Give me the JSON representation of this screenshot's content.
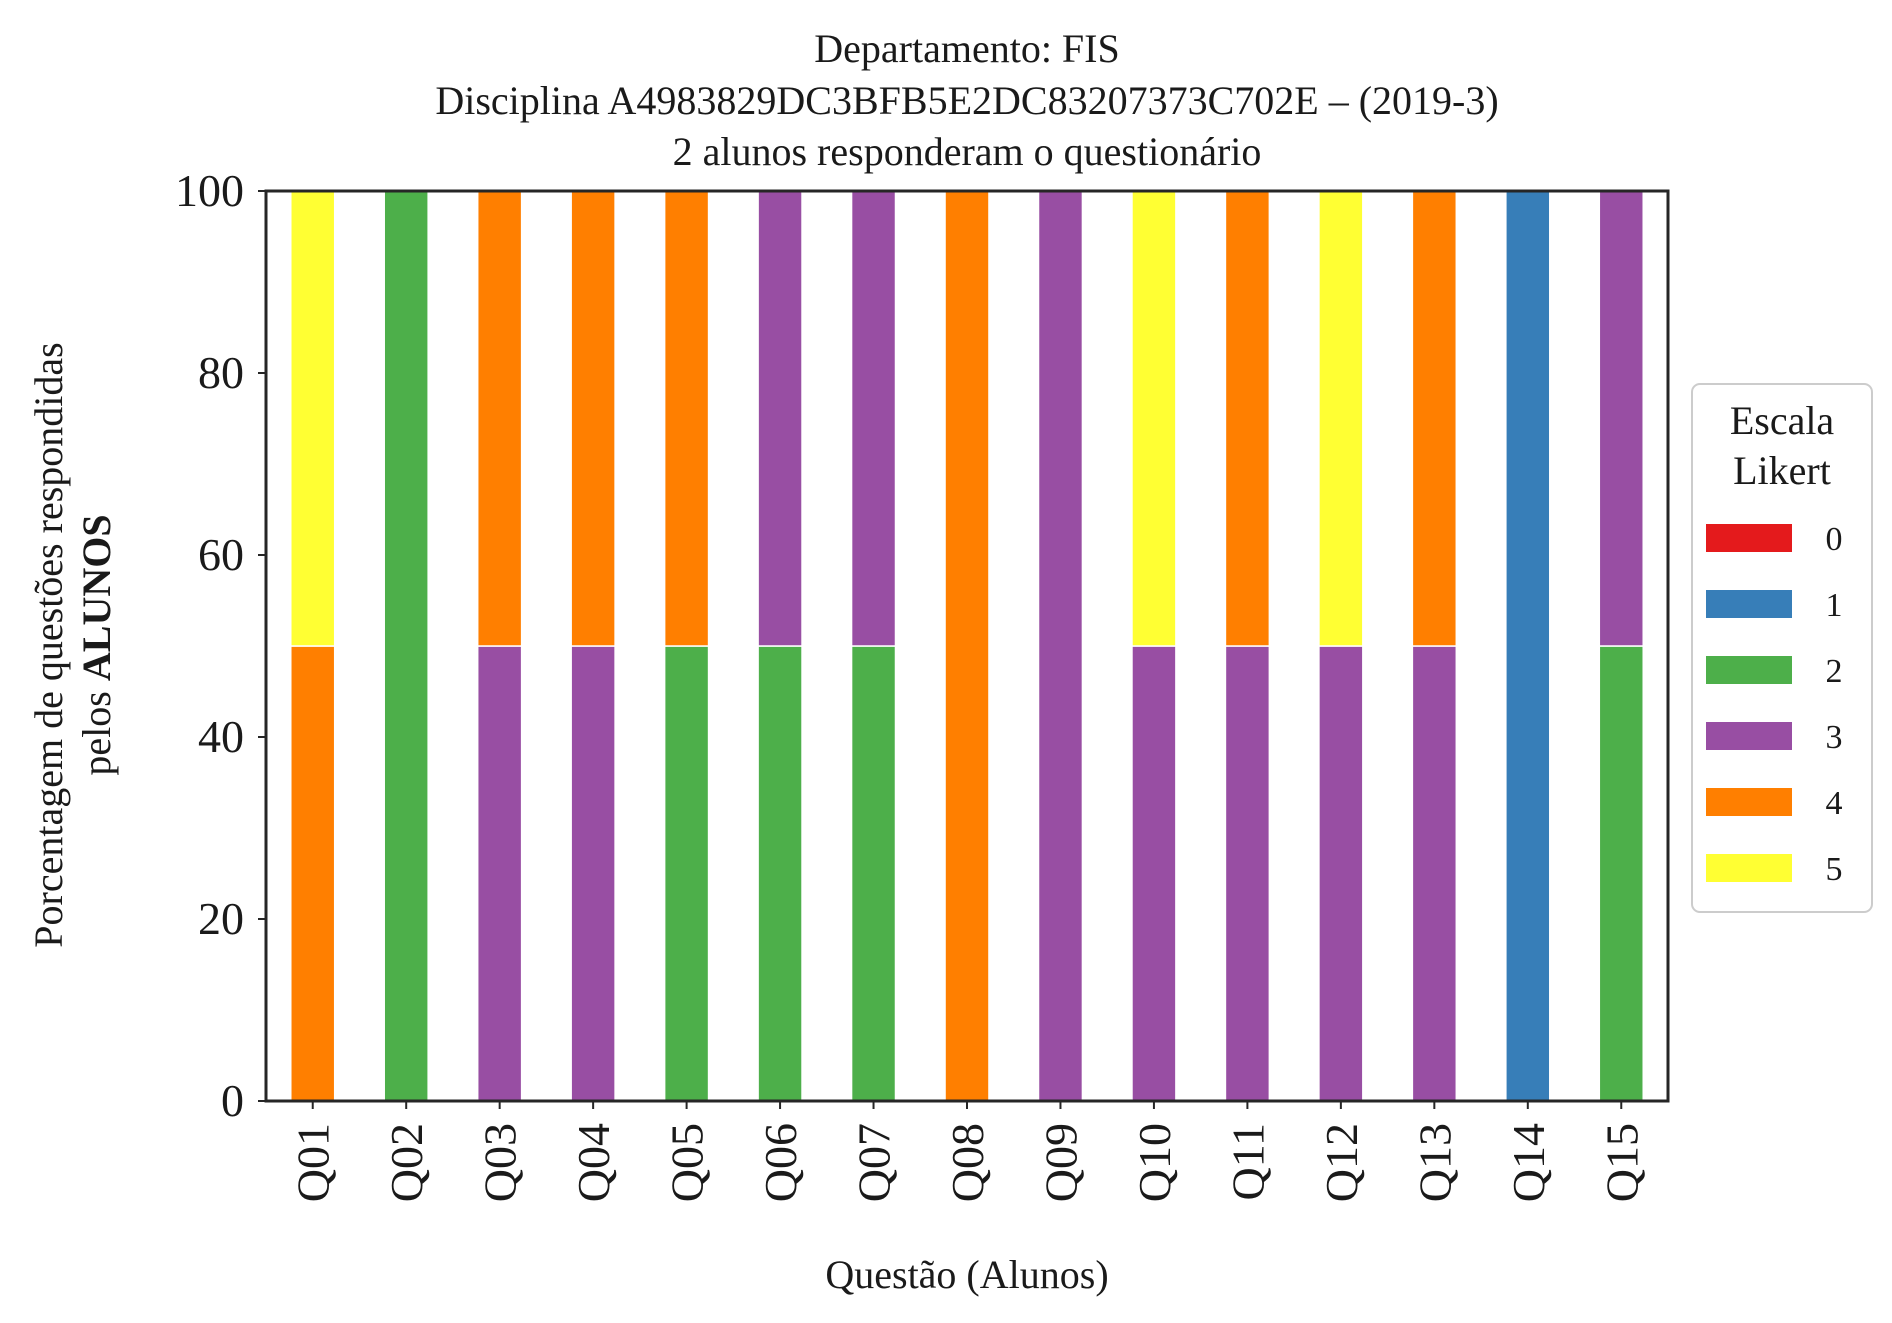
{
  "chart_data": {
    "type": "bar",
    "stacked": true,
    "title": "Departamento: FIS",
    "subtitle": "Disciplina A4983829DC3BFB5E2DC83207373C702E – (2019-3)",
    "subtitle2": "2 alunos responderam o questionário",
    "xlabel": "Questão (Alunos)",
    "ylabel_line1": "Porcentagem de questões respondidas",
    "ylabel_line2_prefix": "pelos ",
    "ylabel_line2_bold": "ALUNOS",
    "ylim": [
      0,
      100
    ],
    "yticks": [
      0,
      20,
      40,
      60,
      80,
      100
    ],
    "grid": false,
    "legend_position": "center-right",
    "legend_title_line1": "Escala",
    "legend_title_line2": "Likert",
    "categories": [
      "Q01",
      "Q02",
      "Q03",
      "Q04",
      "Q05",
      "Q06",
      "Q07",
      "Q08",
      "Q09",
      "Q10",
      "Q11",
      "Q12",
      "Q13",
      "Q14",
      "Q15"
    ],
    "series": [
      {
        "name": "0",
        "color": "#e41a1c",
        "values": [
          0,
          0,
          0,
          0,
          0,
          0,
          0,
          0,
          0,
          0,
          0,
          0,
          0,
          0,
          0
        ]
      },
      {
        "name": "1",
        "color": "#377eb8",
        "values": [
          0,
          0,
          0,
          0,
          0,
          0,
          0,
          0,
          0,
          0,
          0,
          0,
          0,
          100,
          0
        ]
      },
      {
        "name": "2",
        "color": "#4daf4a",
        "values": [
          0,
          100,
          0,
          0,
          50,
          50,
          50,
          0,
          0,
          0,
          0,
          0,
          0,
          0,
          50
        ]
      },
      {
        "name": "3",
        "color": "#984ea3",
        "values": [
          0,
          0,
          50,
          50,
          0,
          50,
          50,
          0,
          100,
          50,
          50,
          50,
          50,
          0,
          50
        ]
      },
      {
        "name": "4",
        "color": "#ff7f00",
        "values": [
          50,
          0,
          50,
          50,
          50,
          0,
          0,
          100,
          0,
          0,
          50,
          0,
          50,
          0,
          0
        ]
      },
      {
        "name": "5",
        "color": "#ffff33",
        "values": [
          50,
          0,
          0,
          0,
          0,
          0,
          0,
          0,
          0,
          50,
          0,
          50,
          0,
          0,
          0
        ]
      }
    ]
  }
}
